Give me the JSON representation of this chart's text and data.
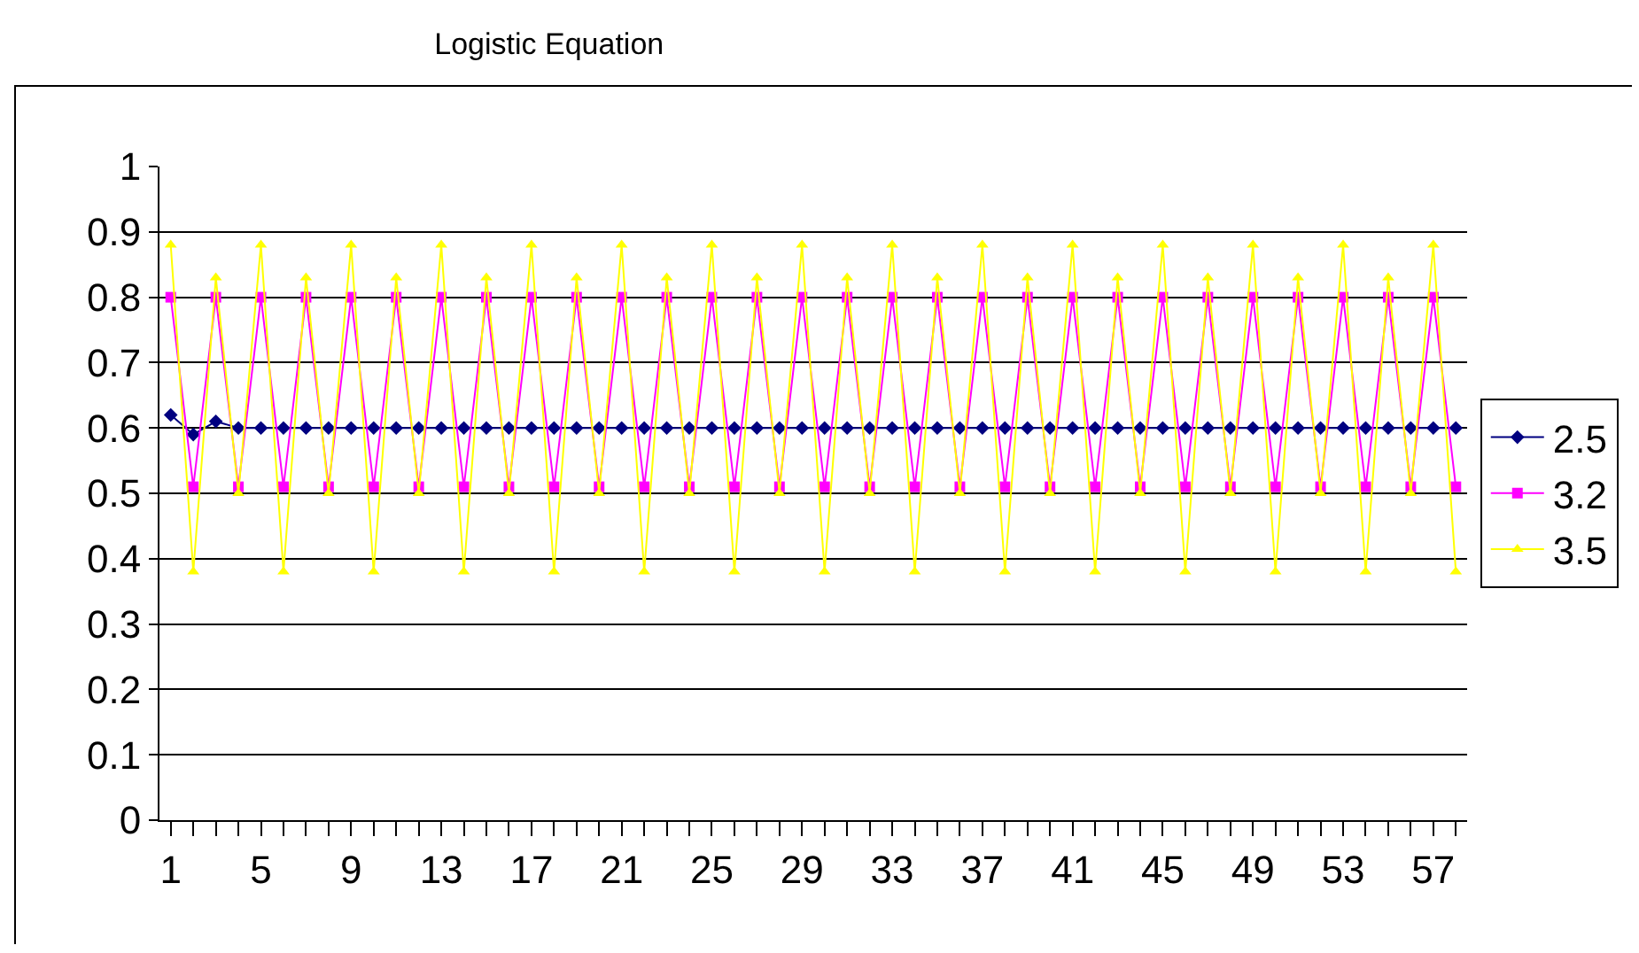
{
  "chart_data": {
    "type": "line",
    "title": "Logistic Equation",
    "categories": [
      "1",
      null,
      null,
      null,
      "5",
      null,
      null,
      null,
      "9",
      null,
      null,
      null,
      "13",
      null,
      null,
      null,
      "17",
      null,
      null,
      null,
      "21",
      null,
      null,
      null,
      "25",
      null,
      null,
      null,
      "29",
      null,
      null,
      null,
      "33",
      null,
      null,
      null,
      "37",
      null,
      null,
      null,
      "41",
      null,
      null,
      null,
      "45",
      null,
      null,
      null,
      "49",
      null,
      null,
      null,
      "53",
      null,
      null,
      null,
      "57",
      null
    ],
    "series": [
      {
        "name": "2.5",
        "color": "#000080",
        "marker": "diamond",
        "values": [
          0.62,
          0.59,
          0.61,
          0.6,
          0.6,
          0.6,
          0.6,
          0.6,
          0.6,
          0.6,
          0.6,
          0.6,
          0.6,
          0.6,
          0.6,
          0.6,
          0.6,
          0.6,
          0.6,
          0.6,
          0.6,
          0.6,
          0.6,
          0.6,
          0.6,
          0.6,
          0.6,
          0.6,
          0.6,
          0.6,
          0.6,
          0.6,
          0.6,
          0.6,
          0.6,
          0.6,
          0.6,
          0.6,
          0.6,
          0.6,
          0.6,
          0.6,
          0.6,
          0.6,
          0.6,
          0.6,
          0.6,
          0.6,
          0.6,
          0.6,
          0.6,
          0.6,
          0.6,
          0.6,
          0.6,
          0.6,
          0.6,
          0.6
        ]
      },
      {
        "name": "3.2",
        "color": "#ff00ff",
        "marker": "square",
        "values": [
          0.8,
          0.51,
          0.8,
          0.51,
          0.8,
          0.51,
          0.8,
          0.51,
          0.8,
          0.51,
          0.8,
          0.51,
          0.8,
          0.51,
          0.8,
          0.51,
          0.8,
          0.51,
          0.8,
          0.51,
          0.8,
          0.51,
          0.8,
          0.51,
          0.8,
          0.51,
          0.8,
          0.51,
          0.8,
          0.51,
          0.8,
          0.51,
          0.8,
          0.51,
          0.8,
          0.51,
          0.8,
          0.51,
          0.8,
          0.51,
          0.8,
          0.51,
          0.8,
          0.51,
          0.8,
          0.51,
          0.8,
          0.51,
          0.8,
          0.51,
          0.8,
          0.51,
          0.8,
          0.51,
          0.8,
          0.51,
          0.8,
          0.51
        ]
      },
      {
        "name": "3.5",
        "color": "#ffff00",
        "marker": "triangle",
        "values": [
          0.88,
          0.38,
          0.83,
          0.5,
          0.88,
          0.38,
          0.83,
          0.5,
          0.88,
          0.38,
          0.83,
          0.5,
          0.88,
          0.38,
          0.83,
          0.5,
          0.88,
          0.38,
          0.83,
          0.5,
          0.88,
          0.38,
          0.83,
          0.5,
          0.88,
          0.38,
          0.83,
          0.5,
          0.88,
          0.38,
          0.83,
          0.5,
          0.88,
          0.38,
          0.83,
          0.5,
          0.88,
          0.38,
          0.83,
          0.5,
          0.88,
          0.38,
          0.83,
          0.5,
          0.88,
          0.38,
          0.83,
          0.5,
          0.88,
          0.38,
          0.83,
          0.5,
          0.88,
          0.38,
          0.83,
          0.5,
          0.88,
          0.38
        ]
      }
    ],
    "ylim": [
      0,
      1
    ],
    "yticks": [
      0,
      0.1,
      0.2,
      0.3,
      0.4,
      0.5,
      0.6,
      0.7,
      0.8,
      0.9,
      1
    ],
    "grid": "y",
    "legend": "right"
  }
}
